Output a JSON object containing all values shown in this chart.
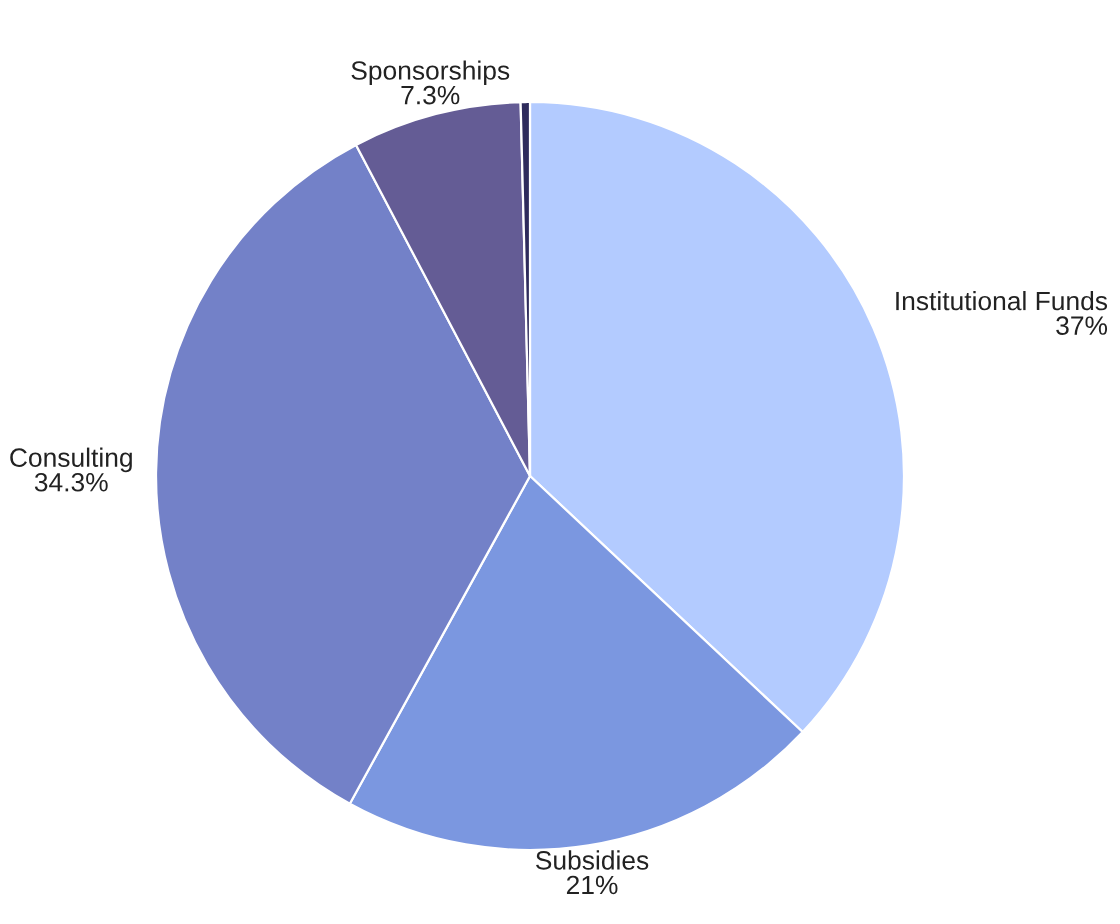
{
  "chart_data": {
    "type": "pie",
    "categories": [
      "Institutional Funds",
      "Subsidies",
      "Consulting",
      "Sponsorships",
      null
    ],
    "values": [
      37,
      21,
      34.3,
      7.3,
      0.4
    ],
    "value_labels": [
      "37%",
      "21%",
      "34.3%",
      "7.3%",
      null
    ],
    "colors": [
      "#b3cbff",
      "#7b97e0",
      "#7381c8",
      "#645c95",
      "#2e2b5c"
    ]
  }
}
